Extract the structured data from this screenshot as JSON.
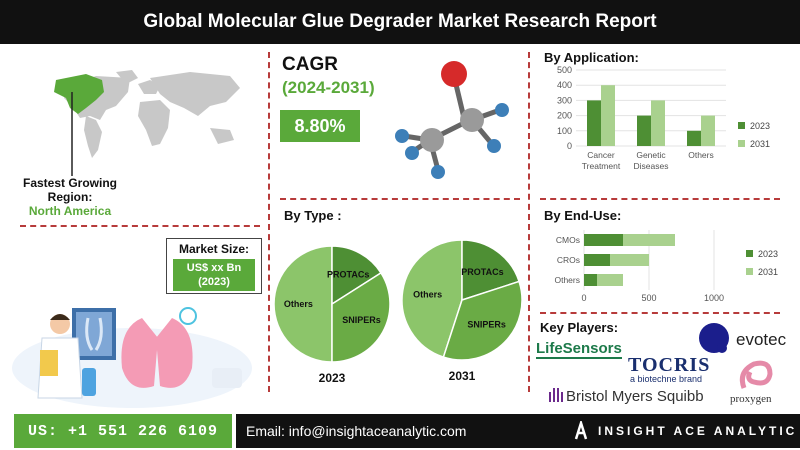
{
  "header": {
    "title": "Global Molecular Glue Degrader Market Research Report"
  },
  "region": {
    "label": "Fastest Growing Region:",
    "value": "North America"
  },
  "cagr": {
    "title": "CAGR",
    "period": "(2024-2031)",
    "value": "8.80%"
  },
  "market_size": {
    "label": "Market Size:",
    "value_line1": "US$ xx Bn",
    "value_line2": "(2023)"
  },
  "by_type": {
    "title": "By Type :"
  },
  "by_application": {
    "title": "By Application:"
  },
  "by_enduse": {
    "title": "By End-Use:"
  },
  "key_players": {
    "title": "Key Players:",
    "items": [
      "LifeSensors",
      "TOCRIS",
      "a biotechne brand",
      "evotec",
      "Bristol Myers Squibb",
      "proxygen"
    ]
  },
  "footer": {
    "phone": "US: +1 551 226 6109",
    "email": "Email: info@insightaceanalytic.com",
    "brand": "INSIGHT ACE ANALYTIC"
  },
  "colors": {
    "dark_green": "#4e8f34",
    "light_green": "#a9d18e",
    "pie_light": "#8cc56a",
    "pie_dark": "#4e8f34",
    "accent": "#5aa93a",
    "divider": "#b73b3b"
  },
  "chart_data": [
    {
      "type": "bar",
      "title": "By Application:",
      "categories": [
        "Cancer Treatment",
        "Genetic Diseases",
        "Others"
      ],
      "series": [
        {
          "name": "2023",
          "values": [
            300,
            200,
            100
          ]
        },
        {
          "name": "2031",
          "values": [
            400,
            300,
            200
          ]
        }
      ],
      "ylim": [
        0,
        500
      ],
      "yticks": [
        0,
        100,
        200,
        300,
        400,
        500
      ],
      "legend": "right"
    },
    {
      "type": "bar",
      "orientation": "horizontal",
      "title": "By End-Use:",
      "categories": [
        "CMOs",
        "CROs",
        "Others"
      ],
      "series": [
        {
          "name": "2023",
          "values": [
            300,
            200,
            100
          ]
        },
        {
          "name": "2031",
          "values": [
            700,
            500,
            300
          ]
        }
      ],
      "xlim": [
        0,
        1000
      ],
      "xticks": [
        0,
        500,
        1000
      ],
      "legend": "right"
    },
    {
      "type": "pie",
      "title": "2023",
      "labels": [
        "Others",
        "PROTACs",
        "SNIPERs"
      ],
      "values": [
        50,
        16,
        34
      ]
    },
    {
      "type": "pie",
      "title": "2031",
      "labels": [
        "Others",
        "PROTACs",
        "SNIPERs"
      ],
      "values": [
        45,
        20,
        35
      ]
    }
  ]
}
